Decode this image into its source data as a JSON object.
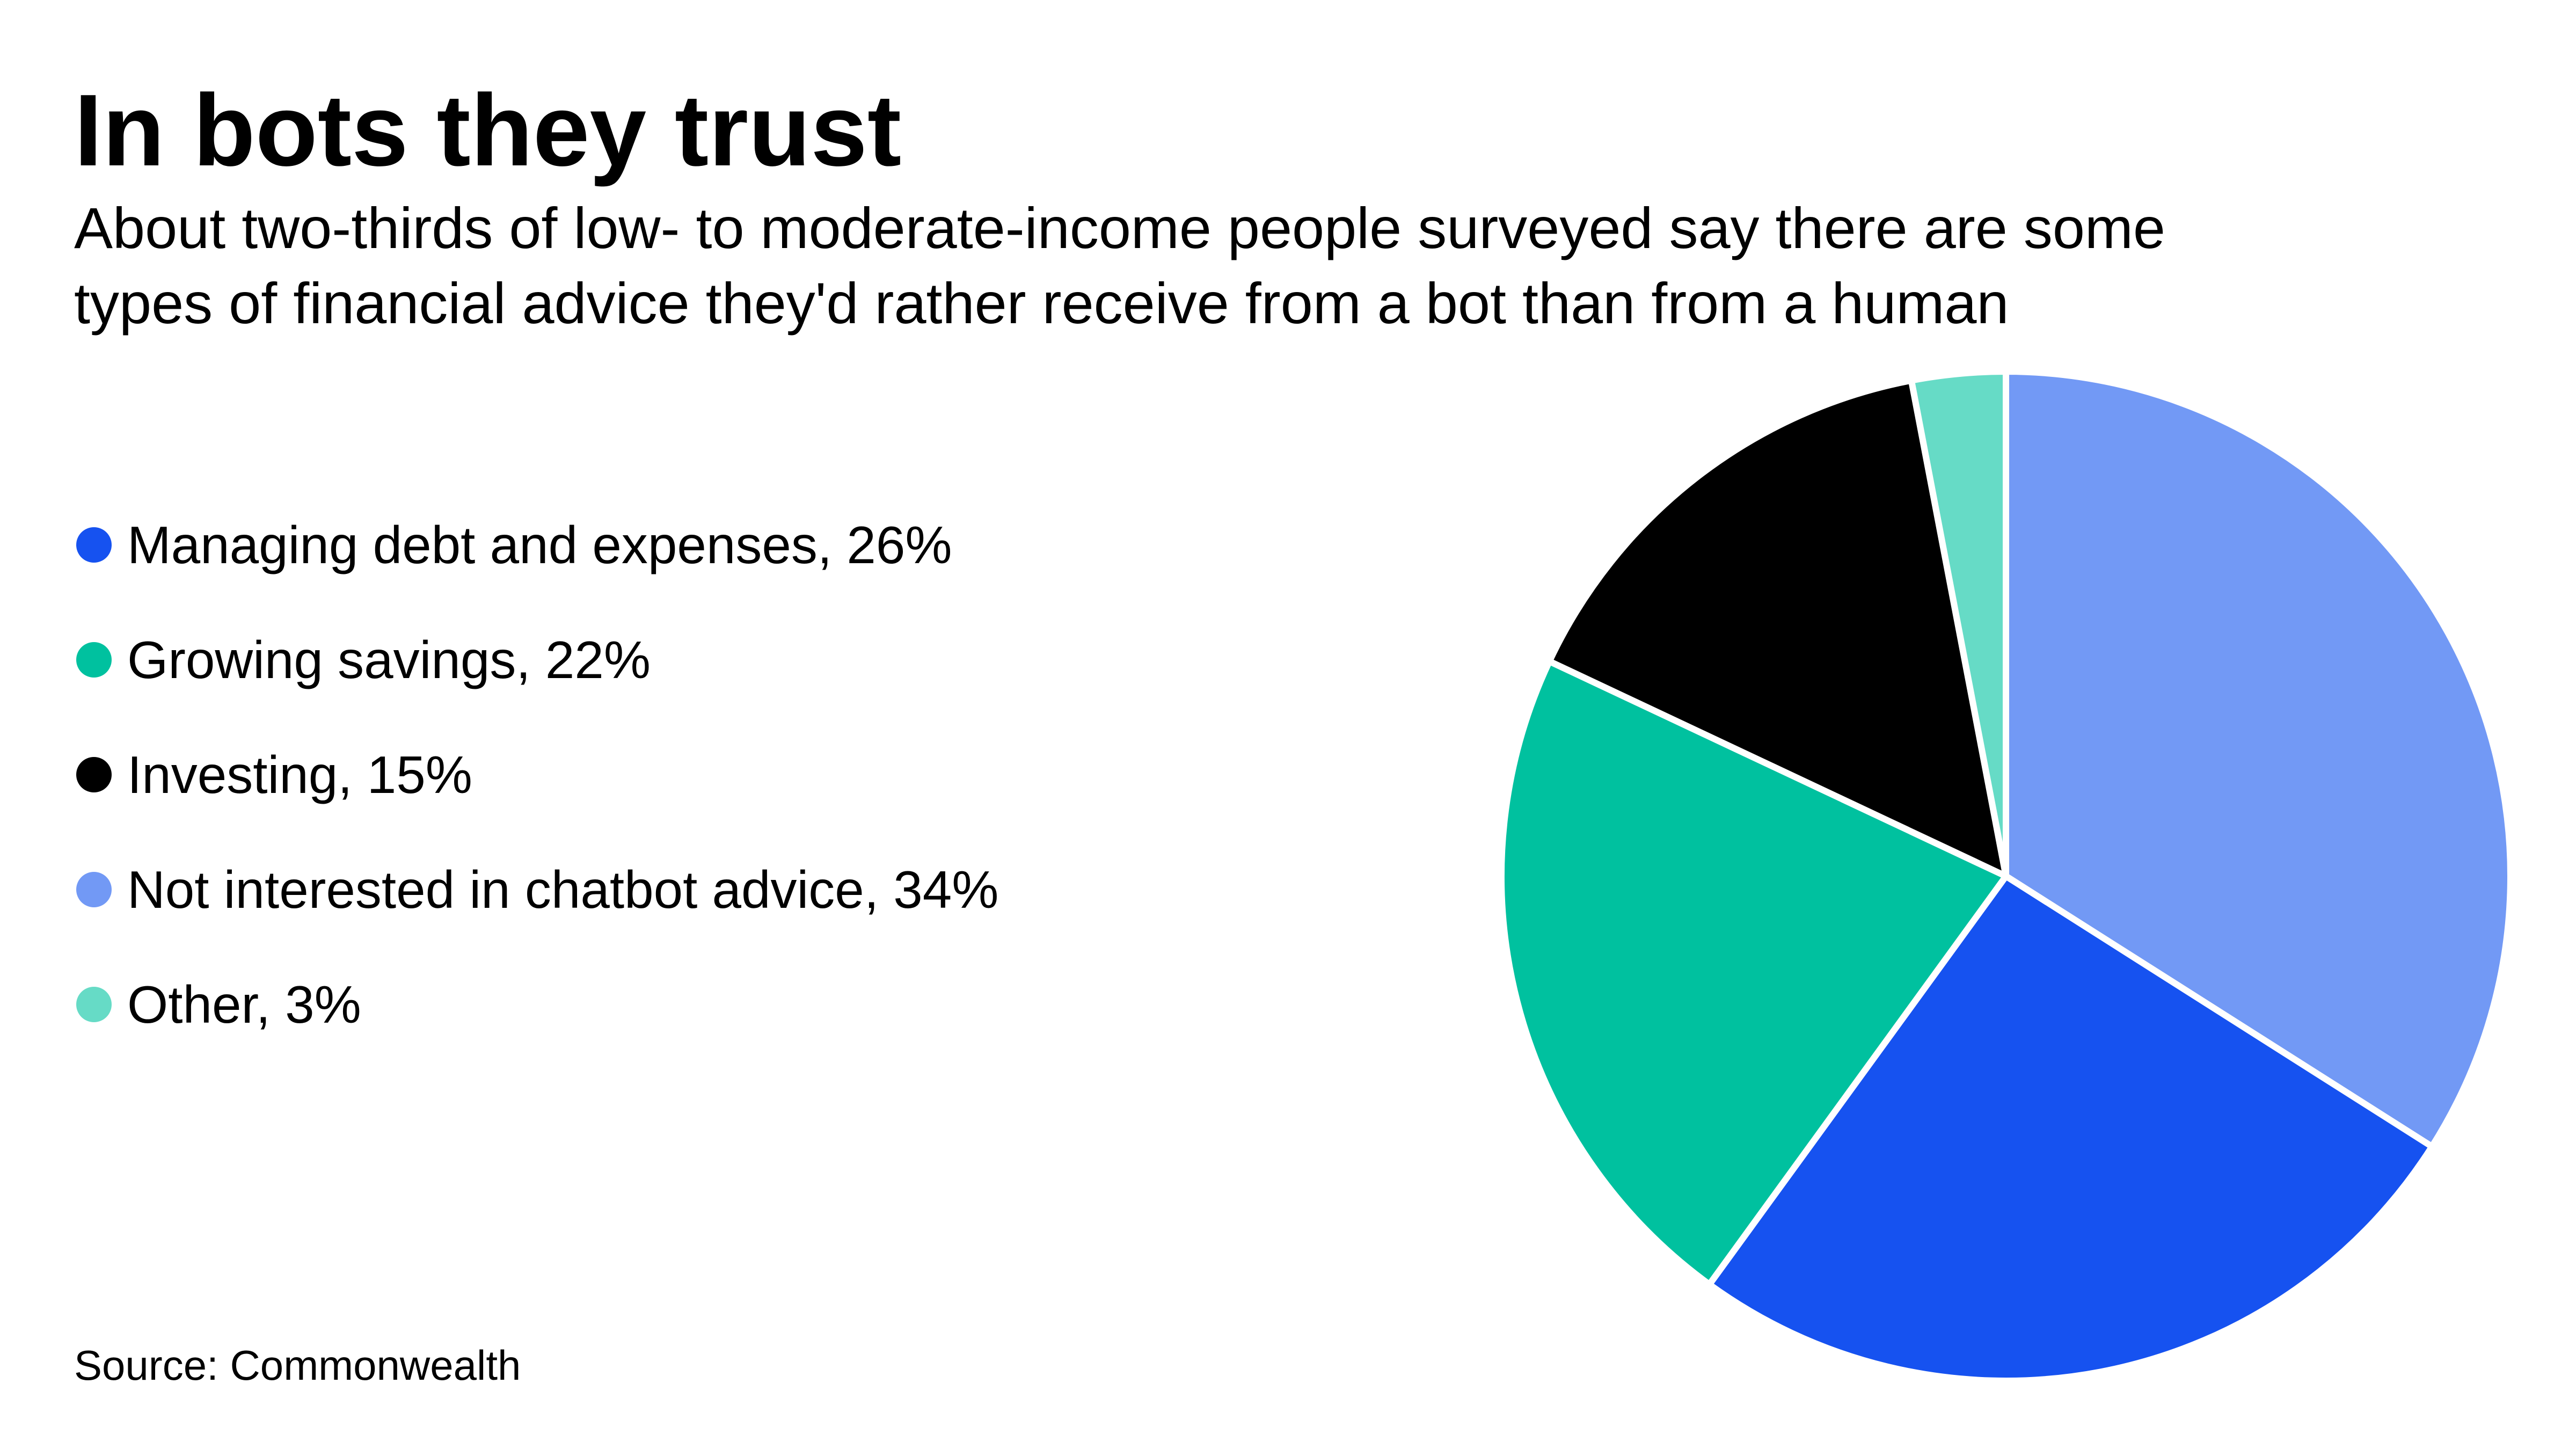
{
  "chart_data": {
    "type": "pie",
    "title": "In bots they trust",
    "subtitle": [
      "About two-thirds of low- to moderate-income people surveyed say there are some",
      "types of financial advice they'd rather receive from a bot than from a human"
    ],
    "categories": [
      "Managing debt and expenses, 26%",
      "Growing savings, 22%",
      "Investing, 15%",
      "Not interested in chatbot advice, 34%",
      "Other, 3%"
    ],
    "values": [
      26,
      22,
      15,
      34,
      3
    ],
    "colors": [
      "#1652f0",
      "#00c19f",
      "#000000",
      "#7299f5",
      "#66dbc6"
    ],
    "source": "Source: Commonwealth"
  }
}
